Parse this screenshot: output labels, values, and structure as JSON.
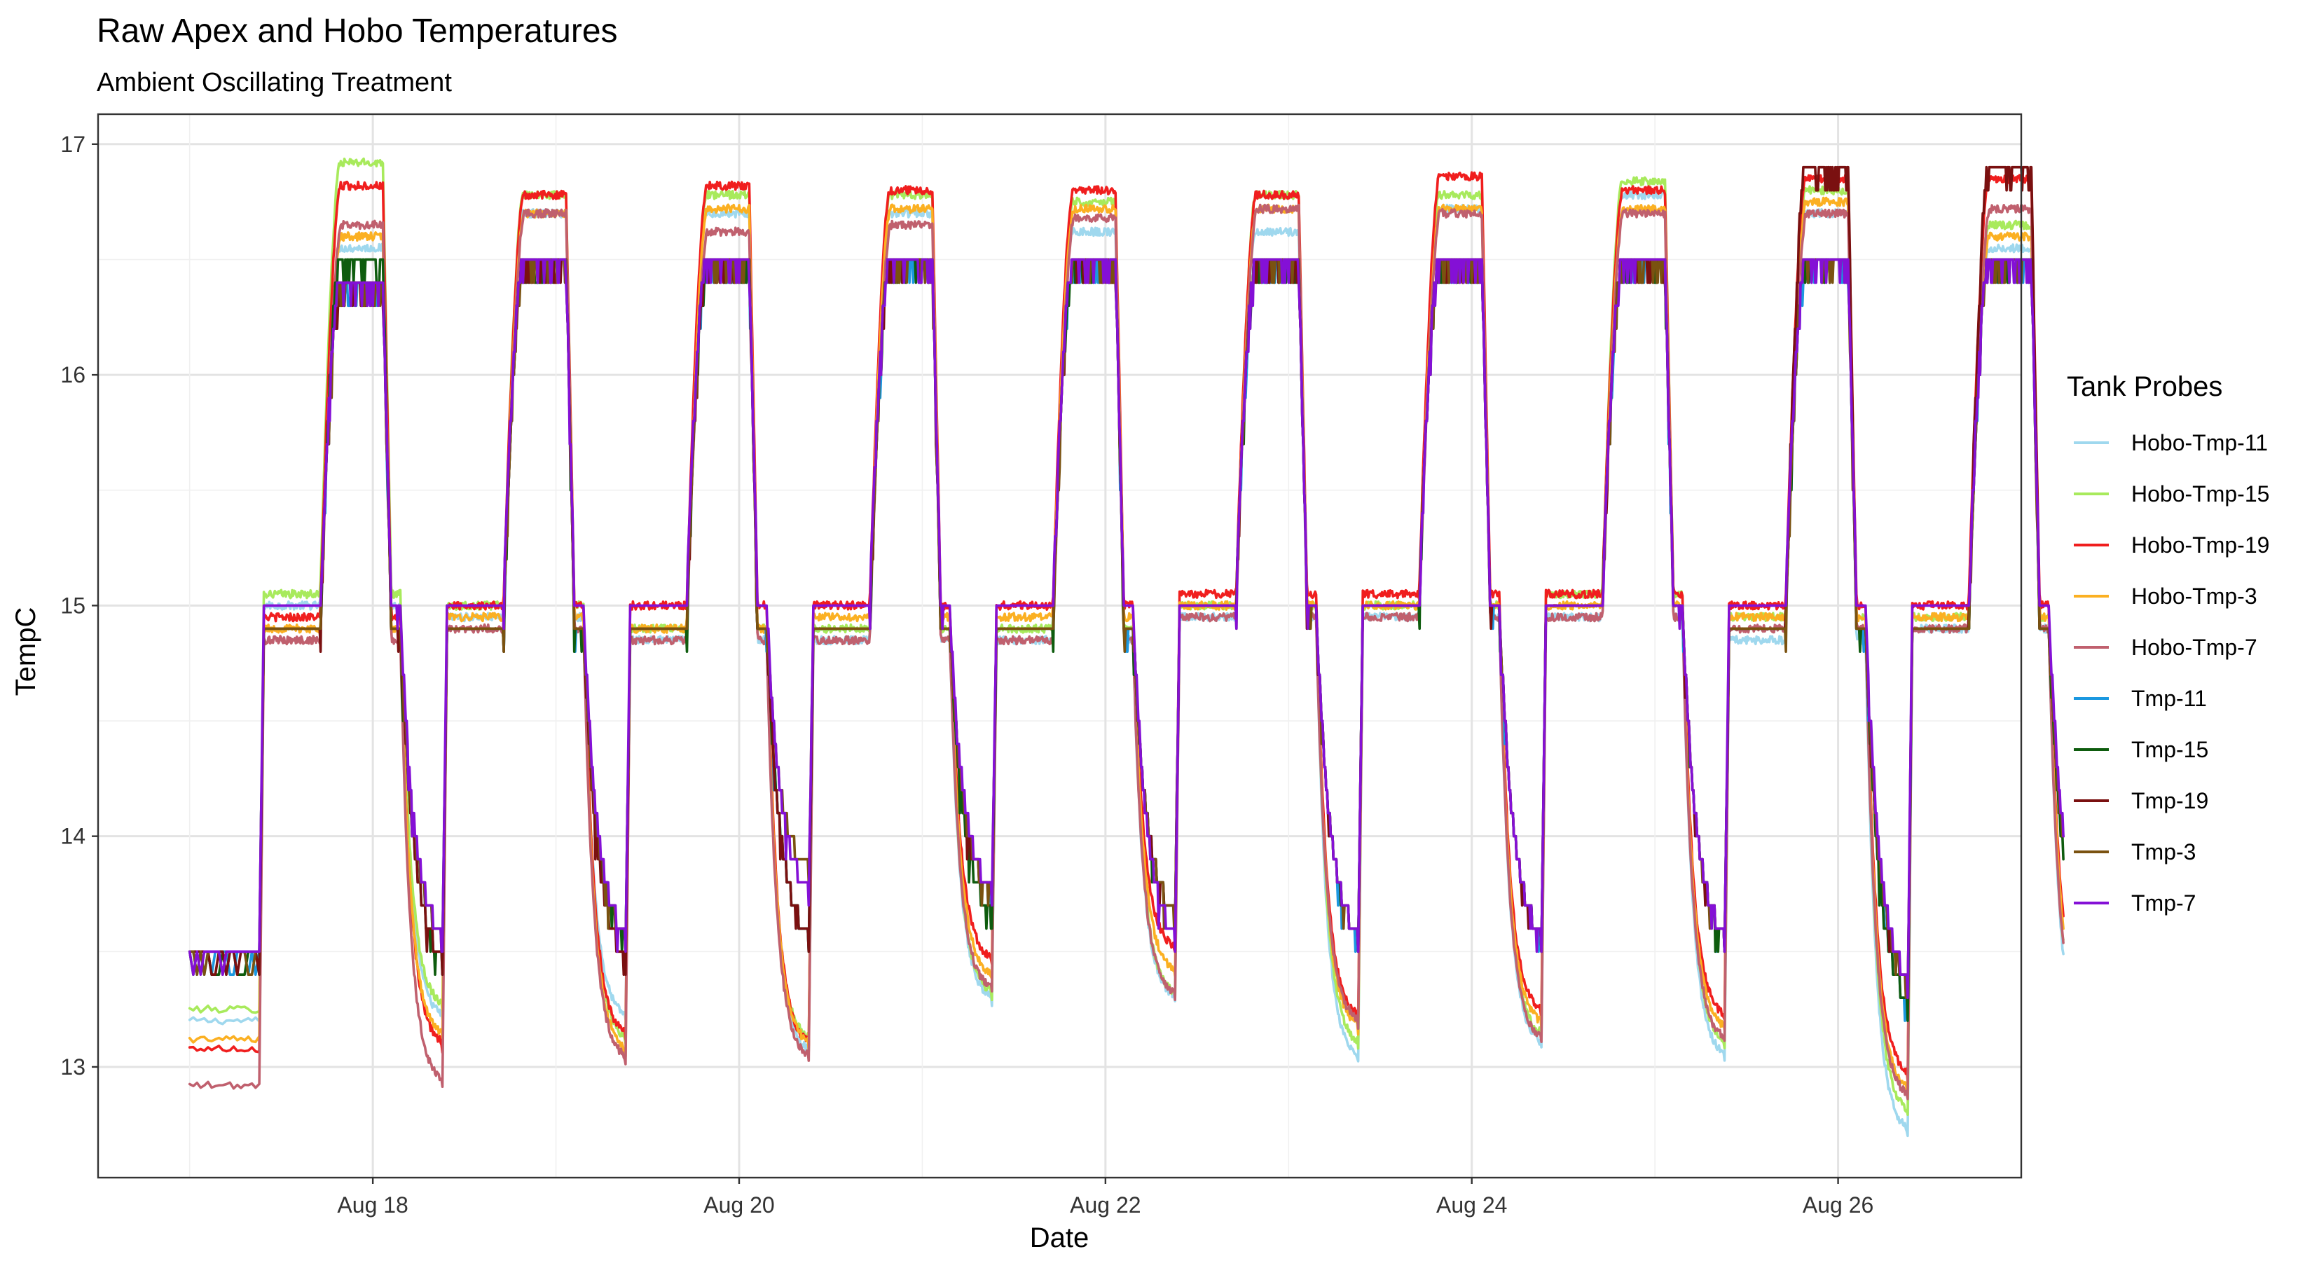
{
  "chart_data": {
    "type": "line",
    "title": "Raw Apex and Hobo Temperatures",
    "subtitle": "Ambient Oscillating Treatment",
    "xlabel": "Date",
    "ylabel": "TempC",
    "x_range": [
      "2018-08-16T12:00",
      "2018-08-27T00:00"
    ],
    "y_range": [
      12.52,
      17.13
    ],
    "y_ticks": [
      13,
      14,
      15,
      16,
      17
    ],
    "x_ticks": [
      {
        "date": "2018-08-18",
        "label": "Aug 18"
      },
      {
        "date": "2018-08-20",
        "label": "Aug 20"
      },
      {
        "date": "2018-08-22",
        "label": "Aug 22"
      },
      {
        "date": "2018-08-24",
        "label": "Aug 24"
      },
      {
        "date": "2018-08-26",
        "label": "Aug 26"
      }
    ],
    "grid": true,
    "legend": {
      "title": "Tank Probes",
      "position": "right"
    },
    "start_date": "2018-08-17",
    "days": 10,
    "series": [
      {
        "name": "Hobo-Tmp-11",
        "color": "#9fd8ee",
        "kind": "hobo",
        "peaks": [
          16.55,
          16.7,
          16.7,
          16.7,
          16.62,
          16.62,
          16.72,
          16.78,
          16.7,
          16.55
        ],
        "troughs": [
          13.2,
          13.2,
          13.05,
          13.28,
          13.28,
          13.02,
          13.08,
          13.03,
          12.7,
          13.05
        ],
        "plateau": [
          15.0,
          14.95,
          14.85,
          14.85,
          14.85,
          14.95,
          14.95,
          14.95,
          14.85,
          14.9
        ]
      },
      {
        "name": "Hobo-Tmp-15",
        "color": "#a8ea5c",
        "kind": "hobo",
        "peaks": [
          16.92,
          16.78,
          16.78,
          16.78,
          16.75,
          16.78,
          16.78,
          16.84,
          16.8,
          16.65
        ],
        "troughs": [
          13.25,
          13.1,
          13.1,
          13.3,
          13.3,
          13.08,
          13.12,
          13.08,
          12.78,
          13.1
        ],
        "plateau": [
          15.05,
          15.0,
          14.9,
          14.9,
          14.9,
          15.0,
          15.0,
          15.05,
          14.95,
          14.95
        ]
      },
      {
        "name": "Hobo-Tmp-19",
        "color": "#f01e1e",
        "kind": "hobo",
        "peaks": [
          16.82,
          16.78,
          16.82,
          16.8,
          16.8,
          16.78,
          16.86,
          16.8,
          16.85,
          16.85
        ],
        "troughs": [
          13.08,
          13.12,
          13.08,
          13.45,
          13.5,
          13.2,
          13.22,
          13.2,
          12.95,
          13.25
        ],
        "plateau": [
          14.95,
          15.0,
          15.0,
          15.0,
          15.0,
          15.05,
          15.05,
          15.05,
          15.0,
          15.0
        ]
      },
      {
        "name": "Hobo-Tmp-3",
        "color": "#fbb022",
        "kind": "hobo",
        "peaks": [
          16.6,
          16.7,
          16.72,
          16.72,
          16.72,
          16.72,
          16.72,
          16.72,
          16.75,
          16.6
        ],
        "troughs": [
          13.12,
          13.05,
          13.08,
          13.38,
          13.4,
          13.15,
          13.17,
          13.15,
          12.88,
          13.18
        ],
        "plateau": [
          14.9,
          14.95,
          14.9,
          14.95,
          14.95,
          15.0,
          15.0,
          15.0,
          14.95,
          14.95
        ]
      },
      {
        "name": "Hobo-Tmp-7",
        "color": "#c0606e",
        "kind": "hobo",
        "peaks": [
          16.65,
          16.7,
          16.62,
          16.65,
          16.68,
          16.72,
          16.7,
          16.7,
          16.7,
          16.72
        ],
        "troughs": [
          12.92,
          13.02,
          13.02,
          13.32,
          13.3,
          13.18,
          13.1,
          13.1,
          12.85,
          13.1
        ],
        "plateau": [
          14.85,
          14.9,
          14.85,
          14.85,
          14.85,
          14.95,
          14.95,
          14.95,
          14.9,
          14.9
        ]
      },
      {
        "name": "Tmp-11",
        "color": "#1b98e0",
        "kind": "apex",
        "peaks": [
          16.4,
          16.5,
          16.5,
          16.5,
          16.5,
          16.5,
          16.5,
          16.5,
          16.5,
          16.5
        ],
        "troughs": [
          13.5,
          13.5,
          13.5,
          13.7,
          13.6,
          13.5,
          13.5,
          13.5,
          13.2,
          13.5
        ],
        "plateau": [
          14.9,
          14.9,
          14.9,
          14.9,
          14.9,
          15.0,
          15.0,
          15.0,
          14.9,
          14.9
        ]
      },
      {
        "name": "Tmp-15",
        "color": "#0e5c0e",
        "kind": "apex",
        "peaks": [
          16.5,
          16.5,
          16.5,
          16.5,
          16.5,
          16.5,
          16.5,
          16.5,
          16.5,
          16.5
        ],
        "troughs": [
          13.4,
          13.5,
          13.5,
          13.6,
          13.6,
          13.5,
          13.5,
          13.5,
          13.2,
          13.4
        ],
        "plateau": [
          14.9,
          14.9,
          14.9,
          14.9,
          14.9,
          15.0,
          15.0,
          15.0,
          14.9,
          14.9
        ]
      },
      {
        "name": "Tmp-19",
        "color": "#7a1010",
        "kind": "apex",
        "peaks": [
          16.4,
          16.5,
          16.5,
          16.5,
          16.5,
          16.5,
          16.5,
          16.5,
          16.9,
          16.9
        ],
        "troughs": [
          13.4,
          13.4,
          13.5,
          13.7,
          13.6,
          13.5,
          13.5,
          13.5,
          13.3,
          13.5
        ],
        "plateau": [
          14.9,
          14.9,
          14.9,
          14.9,
          14.9,
          15.0,
          15.0,
          15.0,
          14.9,
          14.9
        ]
      },
      {
        "name": "Tmp-3",
        "color": "#7a5210",
        "kind": "apex",
        "peaks": [
          16.4,
          16.5,
          16.5,
          16.5,
          16.5,
          16.5,
          16.5,
          16.5,
          16.5,
          16.5
        ],
        "troughs": [
          13.5,
          13.5,
          13.8,
          13.7,
          13.6,
          13.5,
          13.5,
          13.5,
          13.3,
          13.5
        ],
        "plateau": [
          14.9,
          14.9,
          14.9,
          14.9,
          14.9,
          15.0,
          15.0,
          15.0,
          14.9,
          14.9
        ]
      },
      {
        "name": "Tmp-7",
        "color": "#8410d6",
        "kind": "apex",
        "peaks": [
          16.4,
          16.5,
          16.5,
          16.5,
          16.5,
          16.5,
          16.5,
          16.5,
          16.5,
          16.5
        ],
        "troughs": [
          13.5,
          13.5,
          13.7,
          13.7,
          13.5,
          13.5,
          13.5,
          13.5,
          13.3,
          13.5
        ],
        "plateau": [
          15.0,
          15.0,
          15.0,
          15.0,
          15.0,
          15.0,
          15.0,
          15.0,
          15.0,
          15.0
        ]
      }
    ]
  }
}
